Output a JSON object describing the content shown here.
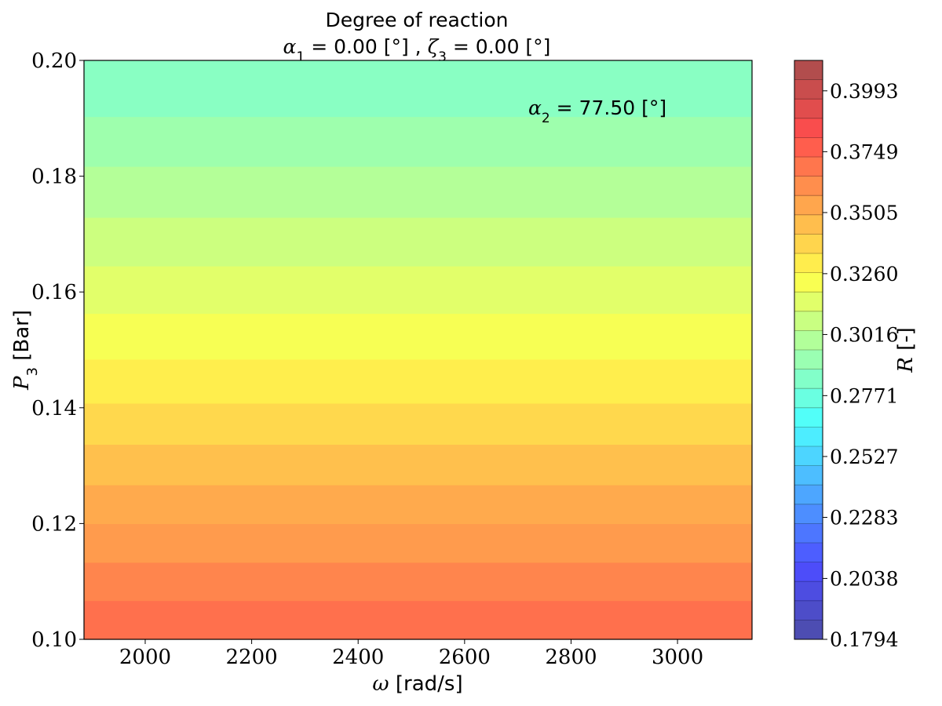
{
  "chart_data": {
    "type": "heatmap",
    "title_line1": "Degree of reaction",
    "title_line2": {
      "sym1": "α",
      "sub1": "1",
      "val1": " = 0.00 [°] , ",
      "sym2": "ζ",
      "sub2": "3",
      "val2": " = 0.00 [°]"
    },
    "xlabel": {
      "sym": "ω",
      "unit": " [rad/s]"
    },
    "ylabel": {
      "sym": "P",
      "sub": "3",
      "unit": " [Bar]"
    },
    "colorbar_label": {
      "sym": "R",
      "unit": " [-]"
    },
    "annotation": {
      "sym": "α",
      "sub": "2",
      "val": " = 77.50 [°]"
    },
    "xlim": [
      1885,
      3140
    ],
    "ylim": [
      0.1,
      0.2
    ],
    "xticks": [
      2000,
      2200,
      2400,
      2600,
      2800,
      3000
    ],
    "xtick_labels": [
      "2000",
      "2200",
      "2400",
      "2600",
      "2800",
      "3000"
    ],
    "yticks": [
      0.1,
      0.12,
      0.14,
      0.16,
      0.18,
      0.2
    ],
    "ytick_labels": [
      "0.10",
      "0.12",
      "0.14",
      "0.16",
      "0.18",
      "0.20"
    ],
    "colorbar": {
      "range": [
        0.1794,
        0.4115
      ],
      "levels": 30,
      "colormap": "jet",
      "alpha": 0.7,
      "ticks": [
        0.1794,
        0.2038,
        0.2283,
        0.2527,
        0.2771,
        0.3016,
        0.326,
        0.3505,
        0.3749,
        0.3993
      ],
      "tick_labels": [
        "0.1794",
        "0.2038",
        "0.2283",
        "0.2527",
        "0.2771",
        "0.3016",
        "0.3260",
        "0.3505",
        "0.3749",
        "0.3993"
      ]
    },
    "bands": [
      {
        "y0": 0.1,
        "y1": 0.1067,
        "value": 0.371
      },
      {
        "y0": 0.1067,
        "y1": 0.1133,
        "value": 0.364
      },
      {
        "y0": 0.1133,
        "y1": 0.12,
        "value": 0.357
      },
      {
        "y0": 0.12,
        "y1": 0.1267,
        "value": 0.352
      },
      {
        "y0": 0.1267,
        "y1": 0.1337,
        "value": 0.345
      },
      {
        "y0": 0.1337,
        "y1": 0.1408,
        "value": 0.337
      },
      {
        "y0": 0.1408,
        "y1": 0.1484,
        "value": 0.33
      },
      {
        "y0": 0.1484,
        "y1": 0.1563,
        "value": 0.322
      },
      {
        "y0": 0.1563,
        "y1": 0.1645,
        "value": 0.315
      },
      {
        "y0": 0.1645,
        "y1": 0.1729,
        "value": 0.308
      },
      {
        "y0": 0.1729,
        "y1": 0.1817,
        "value": 0.3
      },
      {
        "y0": 0.1817,
        "y1": 0.1903,
        "value": 0.293
      },
      {
        "y0": 0.1903,
        "y1": 0.2,
        "value": 0.286
      }
    ]
  }
}
